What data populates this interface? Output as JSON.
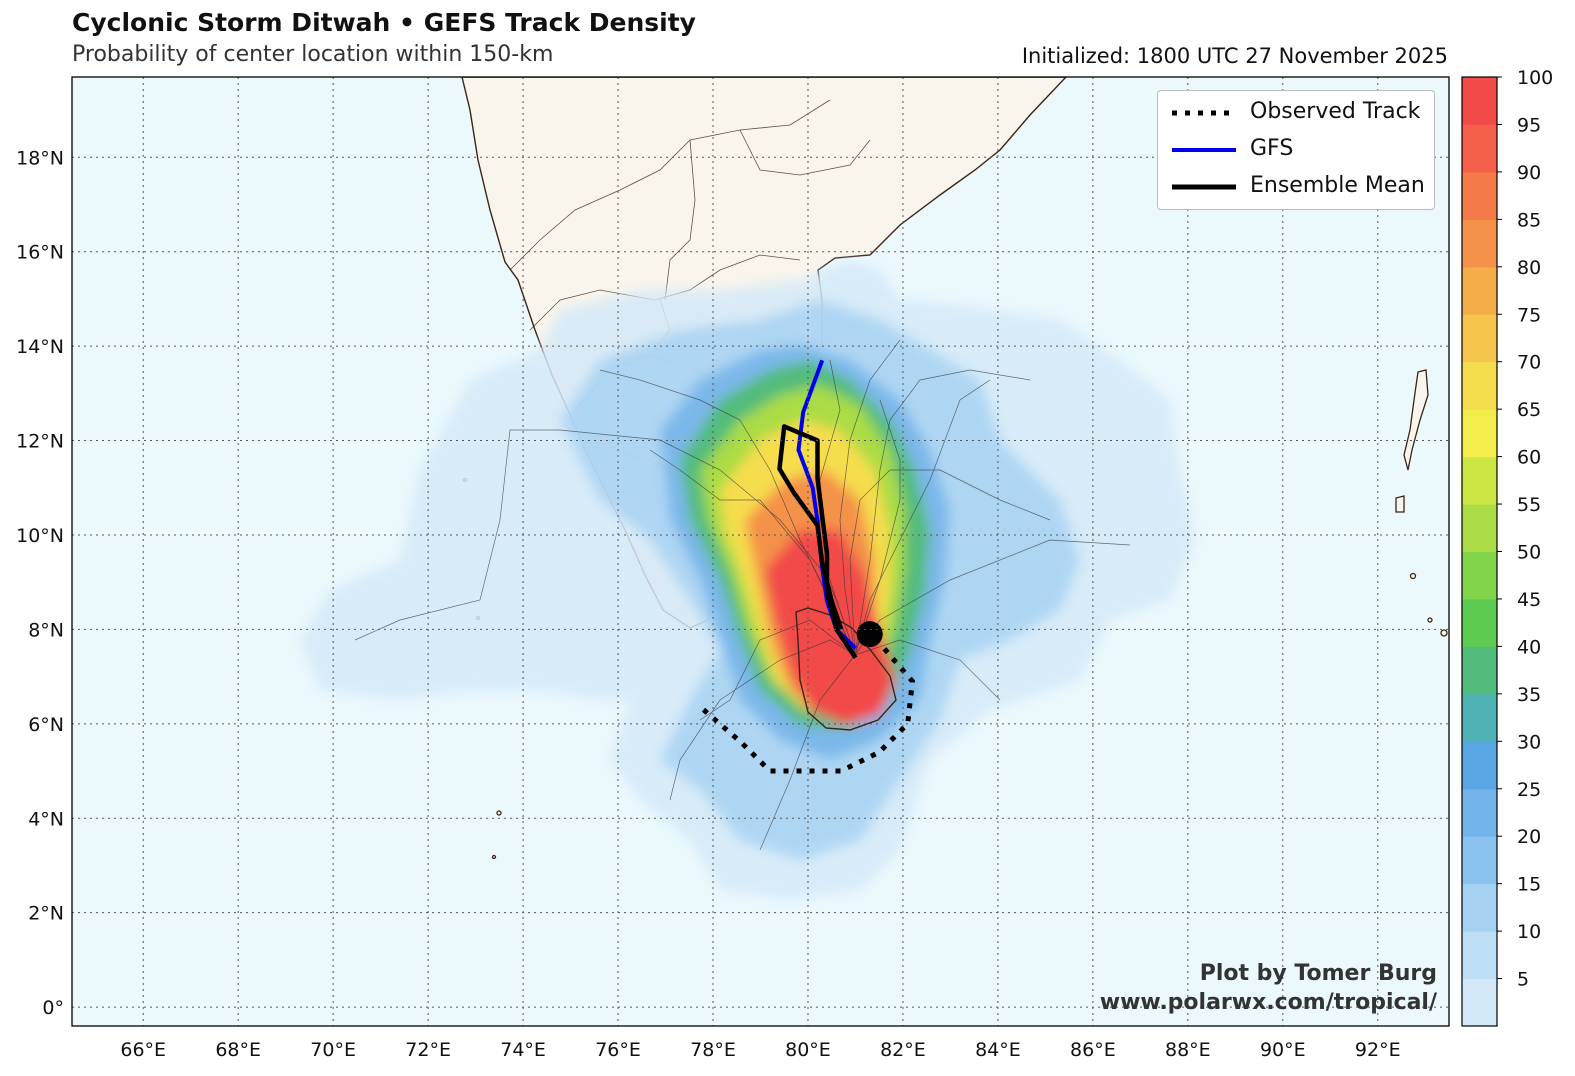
{
  "header": {
    "title": "Cyclonic Storm Ditwah • GEFS Track Density",
    "subtitle": "Probability of center location within 150-km",
    "initialized": "Initialized: 1800 UTC 27 November 2025"
  },
  "map": {
    "lon_range": [
      64.5,
      93.5
    ],
    "lat_range": [
      -0.4,
      19.7
    ],
    "lon_ticks": [
      "66°E",
      "68°E",
      "70°E",
      "72°E",
      "74°E",
      "76°E",
      "78°E",
      "80°E",
      "82°E",
      "84°E",
      "86°E",
      "88°E",
      "90°E",
      "92°E"
    ],
    "lon_values": [
      66,
      68,
      70,
      72,
      74,
      76,
      78,
      80,
      82,
      84,
      86,
      88,
      90,
      92
    ],
    "lat_ticks": [
      "0°",
      "2°N",
      "4°N",
      "6°N",
      "8°N",
      "10°N",
      "12°N",
      "14°N",
      "16°N",
      "18°N"
    ],
    "lat_values": [
      0,
      2,
      4,
      6,
      8,
      10,
      12,
      14,
      16,
      18
    ],
    "colors": {
      "ocean": "#ebf9fd",
      "land": "#faf5ec",
      "coast": "#3a2416"
    }
  },
  "legend": {
    "items": [
      {
        "label": "Observed Track",
        "style": "dotted",
        "color": "#000000"
      },
      {
        "label": "GFS",
        "style": "solid",
        "color": "#0000ee"
      },
      {
        "label": "Ensemble Mean",
        "style": "solid",
        "color": "#000000"
      }
    ]
  },
  "colorbar": {
    "ticks": [
      "5",
      "10",
      "15",
      "20",
      "25",
      "30",
      "35",
      "40",
      "45",
      "50",
      "55",
      "60",
      "65",
      "70",
      "75",
      "80",
      "85",
      "90",
      "95",
      "100"
    ],
    "colors": [
      "#d3e9f8",
      "#bddff5",
      "#a5d1f2",
      "#8cc3ee",
      "#72b3e9",
      "#5aa5e4",
      "#4fb3b5",
      "#52bc7c",
      "#5dca52",
      "#82d44a",
      "#aadc45",
      "#cde643",
      "#f2ed4b",
      "#f6dd4d",
      "#f6c54b",
      "#f5ad48",
      "#f4924a",
      "#f47a4a",
      "#f4604a",
      "#f24a48"
    ]
  },
  "tracks": {
    "observed": [
      [
        77.8,
        6.3
      ],
      [
        78.6,
        5.6
      ],
      [
        79.2,
        5.0
      ],
      [
        80.7,
        5.0
      ],
      [
        81.5,
        5.4
      ],
      [
        82.1,
        6.0
      ],
      [
        82.2,
        6.9
      ],
      [
        81.6,
        7.6
      ],
      [
        81.3,
        7.9
      ]
    ],
    "gfs": [
      [
        81.0,
        7.6
      ],
      [
        80.6,
        8.0
      ],
      [
        80.4,
        8.6
      ],
      [
        80.3,
        9.3
      ],
      [
        80.2,
        10.3
      ],
      [
        80.1,
        11.0
      ],
      [
        79.8,
        11.8
      ],
      [
        79.9,
        12.6
      ],
      [
        80.3,
        13.7
      ]
    ],
    "ensemble_mean": [
      [
        81.0,
        7.4
      ],
      [
        80.6,
        8.0
      ],
      [
        80.4,
        8.8
      ],
      [
        80.4,
        9.6
      ],
      [
        80.3,
        10.4
      ],
      [
        80.2,
        11.2
      ],
      [
        80.2,
        12.0
      ],
      [
        79.5,
        12.3
      ],
      [
        79.4,
        11.4
      ],
      [
        79.7,
        10.9
      ],
      [
        80.2,
        10.2
      ],
      [
        80.3,
        9.4
      ],
      [
        80.5,
        8.6
      ],
      [
        80.7,
        8.0
      ]
    ],
    "current_position": [
      81.3,
      7.9
    ]
  },
  "credit": {
    "line1": "Plot by Tomer Burg",
    "line2": "www.polarwx.com/tropical/"
  }
}
